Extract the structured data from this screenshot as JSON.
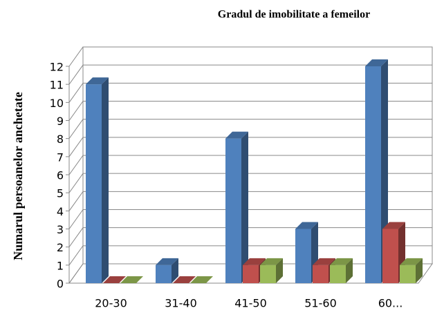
{
  "chart_data": {
    "type": "bar3d",
    "title": "Gradul de imobilitate a femeilor",
    "y_label": "Numarul persoanelor anchetate",
    "categories": [
      "20-30",
      "31-40",
      "41-50",
      "51-60",
      "60..."
    ],
    "series": [
      {
        "color": "#4f81bd",
        "values": [
          11,
          1,
          8,
          3,
          12
        ]
      },
      {
        "color": "#c0504d",
        "values": [
          0,
          0,
          1,
          1,
          3
        ]
      },
      {
        "color": "#9bbb59",
        "values": [
          0,
          0,
          1,
          1,
          1
        ]
      }
    ],
    "ylim": [
      0,
      12
    ],
    "yticks": [
      0,
      1,
      2,
      3,
      4,
      5,
      6,
      7,
      8,
      9,
      10,
      11,
      12
    ],
    "grid": true
  }
}
